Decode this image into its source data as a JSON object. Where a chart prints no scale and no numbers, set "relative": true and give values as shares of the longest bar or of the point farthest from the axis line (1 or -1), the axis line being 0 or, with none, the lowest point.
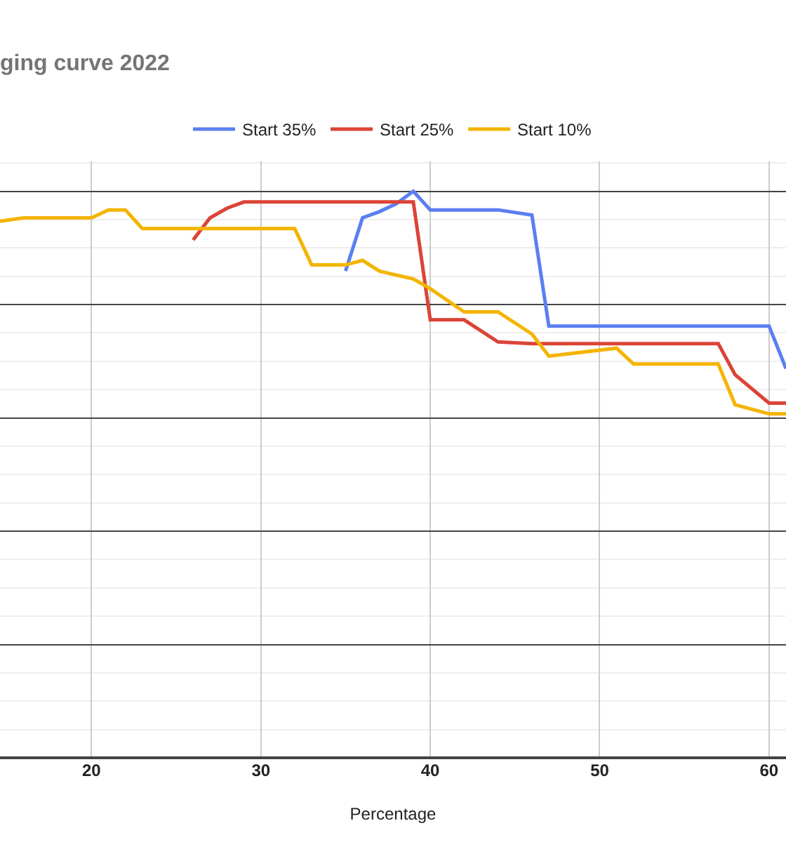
{
  "chart_data": {
    "type": "line",
    "title": "ging curve 2022",
    "xlabel": "Percentage",
    "relative": true,
    "xlim": [
      14.6,
      61
    ],
    "xticks": [
      20,
      30,
      40,
      50,
      60
    ],
    "grid": true,
    "legend": "top",
    "marker": "none",
    "line_style": "solid",
    "series": [
      {
        "name": "Start 35%",
        "color": "#5b7ff0",
        "x": [
          35,
          36,
          37,
          38,
          39,
          40,
          44,
          46,
          47,
          60,
          61
        ],
        "values": [
          0.859,
          0.953,
          0.964,
          0.978,
          1.0,
          0.967,
          0.967,
          0.958,
          0.762,
          0.762,
          0.687
        ]
      },
      {
        "name": "Start 25%",
        "color": "#db4437",
        "x": [
          26,
          27,
          28,
          29,
          39,
          40,
          42,
          44,
          46,
          57,
          58,
          60,
          61
        ],
        "values": [
          0.914,
          0.953,
          0.97,
          0.981,
          0.981,
          0.773,
          0.773,
          0.734,
          0.731,
          0.731,
          0.676,
          0.626,
          0.626
        ]
      },
      {
        "name": "Start 10%",
        "color": "#f4b400",
        "x": [
          14.6,
          16,
          20,
          21,
          22,
          23,
          32,
          33,
          35,
          36,
          37,
          39,
          40,
          42,
          44,
          46,
          47,
          51,
          52,
          57,
          58,
          60,
          61
        ],
        "values": [
          0.947,
          0.953,
          0.953,
          0.967,
          0.967,
          0.934,
          0.934,
          0.87,
          0.87,
          0.878,
          0.859,
          0.845,
          0.828,
          0.787,
          0.787,
          0.748,
          0.709,
          0.723,
          0.695,
          0.695,
          0.623,
          0.607,
          0.607
        ]
      }
    ]
  }
}
